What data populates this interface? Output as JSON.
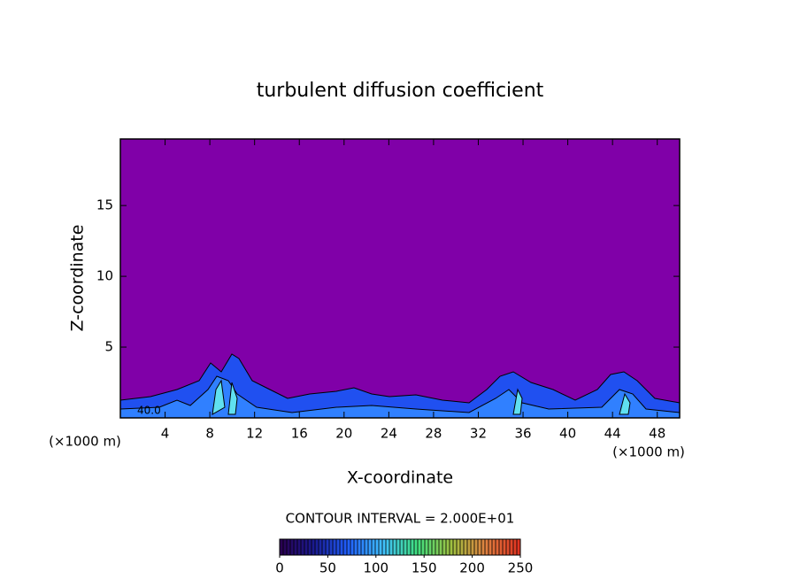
{
  "chart_data": {
    "type": "contour",
    "title": "turbulent diffusion coefficient",
    "x_label": "X-coordinate",
    "y_label": "Z-coordinate",
    "x_unit_left": "(×1000 m)",
    "x_unit_right": "(×1000 m)",
    "contour_label": "40.0",
    "interval_label": "CONTOUR INTERVAL = 2.000E+01",
    "background_color": "#8000a8",
    "xlim": [
      0,
      50
    ],
    "xticks": [
      4,
      8,
      12,
      16,
      20,
      24,
      28,
      32,
      36,
      40,
      44,
      48
    ],
    "ylim": [
      0,
      19.7
    ],
    "yticks": [
      5,
      10,
      15
    ],
    "colorbar": {
      "lim": [
        0,
        250
      ],
      "ticks": [
        0,
        50,
        100,
        150,
        200,
        250
      ],
      "colors": [
        "#2a0050",
        "#1a1a90",
        "#2060ff",
        "#40c0ff",
        "#40e080",
        "#a0c040",
        "#e08040",
        "#e03020"
      ]
    }
  }
}
